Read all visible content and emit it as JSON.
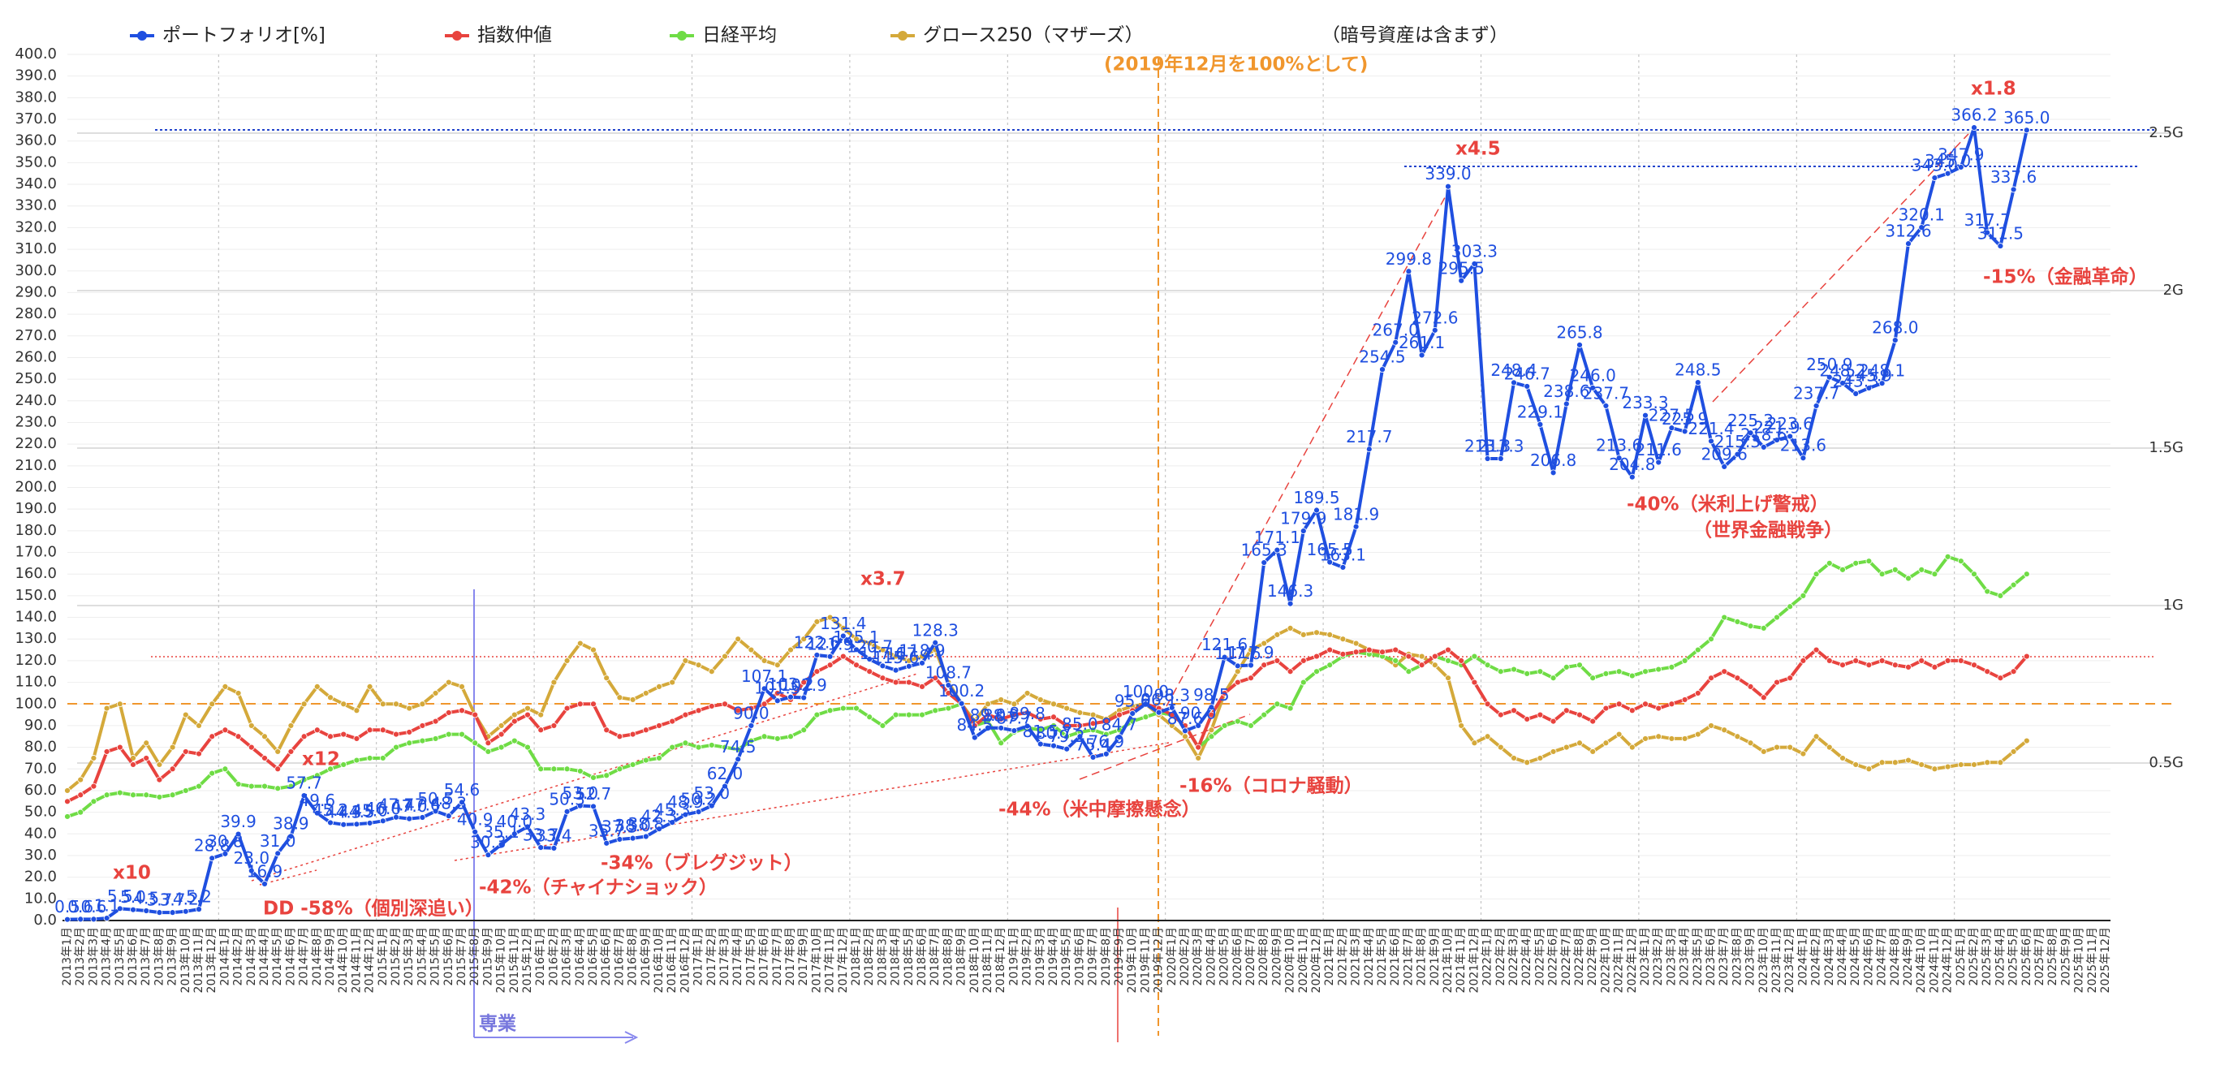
{
  "chart_data": {
    "type": "line",
    "categories": [
      "2013年1月",
      "2013年2月",
      "2013年3月",
      "2013年4月",
      "2013年5月",
      "2013年6月",
      "2013年7月",
      "2013年8月",
      "2013年9月",
      "2013年10月",
      "2013年11月",
      "2013年12月",
      "2014年1月",
      "2014年2月",
      "2014年3月",
      "2014年4月",
      "2014年5月",
      "2014年6月",
      "2014年7月",
      "2014年8月",
      "2014年9月",
      "2014年10月",
      "2014年11月",
      "2014年12月",
      "2015年1月",
      "2015年2月",
      "2015年3月",
      "2015年4月",
      "2015年5月",
      "2015年6月",
      "2015年7月",
      "2015年8月",
      "2015年9月",
      "2015年10月",
      "2015年11月",
      "2015年12月",
      "2016年1月",
      "2016年2月",
      "2016年3月",
      "2016年4月",
      "2016年5月",
      "2016年6月",
      "2016年7月",
      "2016年8月",
      "2016年9月",
      "2016年10月",
      "2016年11月",
      "2016年12月",
      "2017年1月",
      "2017年2月",
      "2017年3月",
      "2017年4月",
      "2017年5月",
      "2017年6月",
      "2017年7月",
      "2017年8月",
      "2017年9月",
      "2017年10月",
      "2017年11月",
      "2017年12月",
      "2018年1月",
      "2018年2月",
      "2018年3月",
      "2018年4月",
      "2018年5月",
      "2018年6月",
      "2018年7月",
      "2018年8月",
      "2018年9月",
      "2018年10月",
      "2018年11月",
      "2018年12月",
      "2019年1月",
      "2019年2月",
      "2019年3月",
      "2019年4月",
      "2019年5月",
      "2019年6月",
      "2019年7月",
      "2019年8月",
      "2019年9月",
      "2019年10月",
      "2019年11月",
      "2019年12月",
      "2020年1月",
      "2020年2月",
      "2020年3月",
      "2020年4月",
      "2020年5月",
      "2020年6月",
      "2020年7月",
      "2020年8月",
      "2020年9月",
      "2020年10月",
      "2020年11月",
      "2020年12月",
      "2021年1月",
      "2021年2月",
      "2021年3月",
      "2021年4月",
      "2021年5月",
      "2021年6月",
      "2021年7月",
      "2021年8月",
      "2021年9月",
      "2021年10月",
      "2021年11月",
      "2021年12月",
      "2022年1月",
      "2022年2月",
      "2022年3月",
      "2022年4月",
      "2022年5月",
      "2022年6月",
      "2022年7月",
      "2022年8月",
      "2022年9月",
      "2022年10月",
      "2022年11月",
      "2022年12月",
      "2023年1月",
      "2023年2月",
      "2023年3月",
      "2023年4月",
      "2023年5月",
      "2023年6月",
      "2023年7月",
      "2023年8月",
      "2023年9月",
      "2023年10月",
      "2023年11月",
      "2023年12月",
      "2024年1月",
      "2024年2月",
      "2024年3月",
      "2024年4月",
      "2024年5月",
      "2024年6月",
      "2024年7月",
      "2024年8月",
      "2024年9月",
      "2024年10月",
      "2024年11月",
      "2024年12月",
      "2025年1月",
      "2025年2月",
      "2025年3月",
      "2025年4月",
      "2025年5月",
      "2025年6月",
      "2025年7月",
      "2025年8月",
      "2025年9月",
      "2025年10月",
      "2025年11月",
      "2025年12月"
    ],
    "series": [
      {
        "name": "ポートフォリオ[%]",
        "color": "#1f4fe0",
        "labeled": true,
        "values": [
          0.5,
          0.6,
          0.6,
          1.1,
          5.5,
          5.0,
          4.5,
          3.7,
          3.7,
          4.2,
          5.2,
          28.8,
          30.8,
          39.9,
          23.0,
          16.9,
          31.0,
          38.9,
          57.7,
          49.6,
          45.2,
          44.3,
          44.5,
          45.0,
          46.0,
          47.7,
          47.0,
          47.6,
          50.5,
          48.3,
          54.6,
          40.9,
          30.3,
          35.1,
          40.0,
          43.3,
          33.7,
          33.4,
          50.3,
          53.0,
          52.7,
          35.7,
          37.5,
          38.0,
          38.8,
          42.3,
          45.3,
          48.9,
          50.2,
          53.0,
          62.0,
          74.5,
          90.0,
          107.1,
          101.5,
          103.2,
          102.9,
          122.6,
          121.9,
          131.4,
          125.1,
          120.7,
          117.6,
          115.6,
          117.4,
          118.9,
          128.3,
          108.7,
          100.2,
          84.5,
          89.0,
          88.9,
          87.7,
          89.8,
          81.5,
          80.7,
          79.2,
          85.0,
          75.4,
          76.9,
          84.7,
          95.6,
          100.0,
          96.1,
          98.3,
          87.6,
          90.0,
          98.5,
          121.6,
          117.6,
          117.9,
          165.3,
          171.1,
          146.3,
          179.9,
          189.5,
          165.5,
          163.1,
          181.9,
          217.7,
          254.5,
          267.0,
          299.8,
          261.1,
          272.6,
          339.0,
          295.5,
          303.3,
          213.3,
          213.3,
          248.4,
          246.7,
          229.1,
          206.8,
          238.6,
          265.8,
          246.0,
          237.7,
          213.6,
          204.8,
          233.3,
          211.6,
          227.5,
          225.9,
          248.5,
          221.4,
          209.6,
          215.3,
          225.2,
          218.6,
          221.9,
          223.6,
          213.6,
          237.7,
          250.9,
          248.2,
          243.3,
          245.9,
          248.1,
          268.0,
          312.6,
          320.1,
          343.0,
          345.0,
          347.9,
          366.2,
          317.7,
          311.5,
          337.6,
          365.0,
          null,
          null,
          null,
          null,
          null,
          null
        ],
        "value_labels": [
          "0.5",
          "0.6",
          "0.6",
          "1.1",
          "5.5",
          "5.0",
          "4.5",
          "3.7",
          "3.7",
          "4.2",
          "5.2",
          "28.8",
          "30.8",
          "39.9",
          "23.0",
          "16.9",
          "31.0",
          "38.9",
          "57.7",
          "49.6",
          "45.2",
          "44.3",
          "44.5",
          "45.0",
          "46.0",
          "47.7",
          "47.0",
          "47.6",
          "50.5",
          "48.3",
          "54.6",
          "40.9",
          "30.3",
          "35.1",
          "40.0",
          "43.3",
          "33.7",
          "33.4",
          "50.3",
          "53.0",
          "52.7",
          "35.7",
          "37.5",
          "38.0",
          "38.8",
          "42.3",
          "45.3",
          "48.9",
          "50.2",
          "53.0",
          "62.0",
          "74.5",
          "90.0",
          "107.1",
          "101.5",
          "103.2",
          "102.9",
          "122.6",
          "121.9",
          "131.4",
          "125.1",
          "120.7",
          "117.6",
          "115.6",
          "117.4",
          "118.9",
          "128.3",
          "108.7",
          "100.2",
          "84.5",
          "89.0",
          "88.9",
          "87.7",
          "89.8",
          "81.5",
          "80.7",
          "79.2",
          "85.0",
          "75.4",
          "76.9",
          "84.7",
          "95.6",
          "100.0",
          "96.1",
          "98.3",
          "87.6",
          "90.0",
          "98.5",
          "121.6",
          "117.6",
          "117.9",
          "165.3",
          "171.1",
          "146.3",
          "179.9",
          "189.5",
          "165.5",
          "163.1",
          "181.9",
          "217.7",
          "254.5",
          "267.0",
          "299.8",
          "261.1",
          "272.6",
          "339.0",
          "295.5",
          "303.3",
          "213.3",
          "213.3",
          "248.4",
          "246.7",
          "229.1",
          "206.8",
          "238.6",
          "265.8",
          "246.0",
          "237.7",
          "213.6",
          "204.8",
          "233.3",
          "211.6",
          "227.5",
          "225.9",
          "248.5",
          "221.4",
          "209.6",
          "215.3",
          "225.2",
          "218.6",
          "221.9",
          "223.6",
          "213.6",
          "237.7",
          "250.9",
          "248.2",
          "243.3",
          "245.9",
          "248.1",
          "268.0",
          "312.6",
          "320.1",
          "343.0",
          "345.0",
          "347.9",
          "366.2",
          "317.7",
          "311.5",
          "337.6",
          "365.0",
          null,
          null,
          null,
          null,
          null,
          null
        ]
      },
      {
        "name": "指数仲値",
        "color": "#e8433e",
        "values": [
          55,
          58,
          62,
          78,
          80,
          72,
          75,
          65,
          70,
          78,
          77,
          85,
          88,
          85,
          80,
          75,
          70,
          78,
          85,
          88,
          85,
          86,
          84,
          88,
          88,
          86,
          87,
          90,
          92,
          96,
          97,
          95,
          82,
          86,
          92,
          95,
          88,
          90,
          98,
          100,
          100,
          88,
          85,
          86,
          88,
          90,
          92,
          95,
          97,
          99,
          100,
          97,
          98,
          100,
          105,
          102,
          110,
          115,
          118,
          122,
          118,
          115,
          112,
          110,
          110,
          108,
          112,
          105,
          100,
          90,
          95,
          93,
          95,
          96,
          93,
          94,
          90,
          90,
          91,
          92,
          95,
          97,
          100,
          98,
          95,
          90,
          80,
          95,
          105,
          110,
          112,
          118,
          120,
          115,
          120,
          122,
          125,
          123,
          124,
          125,
          124,
          125,
          122,
          118,
          122,
          125,
          120,
          110,
          100,
          95,
          97,
          93,
          95,
          92,
          97,
          95,
          92,
          98,
          100,
          97,
          100,
          98,
          100,
          102,
          105,
          112,
          115,
          112,
          108,
          103,
          110,
          112,
          120,
          125,
          120,
          118,
          120,
          118,
          120,
          118,
          117,
          120,
          117,
          120,
          120,
          118,
          115,
          112,
          115,
          122,
          null,
          null,
          null,
          null,
          null,
          null
        ]
      },
      {
        "name": "日経平均",
        "color": "#6fdc45",
        "values": [
          48,
          50,
          55,
          58,
          59,
          58,
          58,
          57,
          58,
          60,
          62,
          68,
          70,
          63,
          62,
          62,
          61,
          62,
          65,
          67,
          70,
          72,
          74,
          75,
          75,
          80,
          82,
          83,
          84,
          86,
          86,
          82,
          78,
          80,
          83,
          80,
          70,
          70,
          70,
          69,
          66,
          67,
          70,
          72,
          74,
          75,
          80,
          82,
          80,
          81,
          80,
          79,
          83,
          85,
          84,
          85,
          88,
          95,
          97,
          98,
          98,
          94,
          90,
          95,
          95,
          95,
          97,
          98,
          100,
          90,
          92,
          82,
          87,
          89,
          88,
          90,
          85,
          87,
          88,
          86,
          88,
          92,
          94,
          96,
          95,
          90,
          80,
          85,
          90,
          92,
          90,
          95,
          100,
          98,
          110,
          115,
          118,
          122,
          124,
          123,
          122,
          120,
          115,
          118,
          122,
          120,
          118,
          122,
          118,
          115,
          116,
          114,
          115,
          112,
          117,
          118,
          112,
          114,
          115,
          113,
          115,
          116,
          117,
          120,
          125,
          130,
          140,
          138,
          136,
          135,
          140,
          145,
          150,
          160,
          165,
          162,
          165,
          166,
          160,
          162,
          158,
          162,
          160,
          168,
          166,
          160,
          152,
          150,
          155,
          160,
          null,
          null,
          null,
          null,
          null,
          null
        ]
      },
      {
        "name": "グロース250（マザーズ）",
        "color": "#d4a93a",
        "values": [
          60,
          65,
          75,
          98,
          100,
          75,
          82,
          72,
          80,
          95,
          90,
          100,
          108,
          105,
          90,
          85,
          78,
          90,
          100,
          108,
          103,
          100,
          97,
          108,
          100,
          100,
          98,
          100,
          105,
          110,
          108,
          95,
          85,
          90,
          95,
          98,
          95,
          110,
          120,
          128,
          125,
          112,
          103,
          102,
          105,
          108,
          110,
          120,
          118,
          115,
          122,
          130,
          125,
          120,
          118,
          125,
          130,
          138,
          140,
          135,
          130,
          128,
          125,
          122,
          120,
          122,
          125,
          110,
          100,
          92,
          100,
          102,
          100,
          105,
          102,
          100,
          98,
          96,
          95,
          93,
          97,
          99,
          100,
          95,
          90,
          85,
          75,
          88,
          105,
          115,
          125,
          128,
          132,
          135,
          132,
          133,
          132,
          130,
          128,
          125,
          122,
          118,
          123,
          122,
          118,
          112,
          90,
          82,
          85,
          80,
          75,
          73,
          75,
          78,
          80,
          82,
          78,
          82,
          86,
          80,
          84,
          85,
          84,
          84,
          86,
          90,
          88,
          85,
          82,
          78,
          80,
          80,
          77,
          85,
          80,
          75,
          72,
          70,
          73,
          73,
          74,
          72,
          70,
          71,
          72,
          72,
          73,
          73,
          78,
          83,
          null,
          null,
          null,
          null,
          null,
          null
        ]
      }
    ],
    "ylim": [
      0,
      400
    ],
    "yticks": [
      {
        "value": 0,
        "label": "0.0"
      },
      {
        "value": 10,
        "label": "10.0"
      },
      {
        "value": 20,
        "label": "20.0"
      },
      {
        "value": 30,
        "label": "30.0"
      },
      {
        "value": 40,
        "label": "40.0"
      },
      {
        "value": 50,
        "label": "50.0"
      },
      {
        "value": 60,
        "label": "60.0"
      },
      {
        "value": 70,
        "label": "70.0"
      },
      {
        "value": 80,
        "label": "80.0"
      },
      {
        "value": 90,
        "label": "90.0"
      },
      {
        "value": 100,
        "label": "100.0"
      },
      {
        "value": 110,
        "label": "110.0"
      },
      {
        "value": 120,
        "label": "120.0"
      },
      {
        "value": 130,
        "label": "130.0"
      },
      {
        "value": 140,
        "label": "140.0"
      },
      {
        "value": 150,
        "label": "150.0"
      },
      {
        "value": 160,
        "label": "160.0"
      },
      {
        "value": 170,
        "label": "170.0"
      },
      {
        "value": 180,
        "label": "180.0"
      },
      {
        "value": 190,
        "label": "190.0"
      },
      {
        "value": 200,
        "label": "200.0"
      },
      {
        "value": 210,
        "label": "210.0"
      },
      {
        "value": 220,
        "label": "220.0"
      },
      {
        "value": 230,
        "label": "230.0"
      },
      {
        "value": 240,
        "label": "240.0"
      },
      {
        "value": 250,
        "label": "250.0"
      },
      {
        "value": 260,
        "label": "260.0"
      },
      {
        "value": 270,
        "label": "270.0"
      },
      {
        "value": 280,
        "label": "280.0"
      },
      {
        "value": 290,
        "label": "290.0"
      },
      {
        "value": 300,
        "label": "300.0"
      },
      {
        "value": 310,
        "label": "310.0"
      },
      {
        "value": 320,
        "label": "320.0"
      },
      {
        "value": 330,
        "label": "330.0"
      },
      {
        "value": 340,
        "label": "340.0"
      },
      {
        "value": 350,
        "label": "350.0"
      },
      {
        "value": 360,
        "label": "360.0"
      },
      {
        "value": 370,
        "label": "370.0"
      },
      {
        "value": 380,
        "label": "380.0"
      },
      {
        "value": 390,
        "label": "390.0"
      },
      {
        "value": 400,
        "label": "400.0"
      }
    ],
    "y2lim": [
      0,
      2.75
    ],
    "y2ticks": [
      {
        "value": 0.5,
        "label": "0.5G"
      },
      {
        "value": 1,
        "label": "1G"
      },
      {
        "value": 1.5,
        "label": "1.5G"
      },
      {
        "value": 2,
        "label": "2G"
      },
      {
        "value": 2.5,
        "label": "2.5G"
      }
    ],
    "grid": true,
    "annotations": [
      {
        "text": "（暗号資産は含まず）",
        "color": "#222222"
      },
      {
        "text": "(2019年12月を100%として)",
        "color": "#f0962d"
      },
      {
        "text": "x10",
        "color": "#e8433e"
      },
      {
        "text": "DD -58%（個別深追い）",
        "color": "#e8433e"
      },
      {
        "text": "x12",
        "color": "#e8433e"
      },
      {
        "text": "-42%（チャイナショック）",
        "color": "#e8433e"
      },
      {
        "text": "-34%（ブレグジット）",
        "color": "#e8433e"
      },
      {
        "text": "x3.7",
        "color": "#e8433e"
      },
      {
        "text": "-44%（米中摩擦懸念）",
        "color": "#e8433e"
      },
      {
        "text": "-16%（コロナ騒動）",
        "color": "#e8433e"
      },
      {
        "text": "x4.5",
        "color": "#e8433e"
      },
      {
        "text": "-40%（米利上げ警戒）",
        "color": "#e8433e"
      },
      {
        "text": "（世界金融戦争）",
        "color": "#e8433e"
      },
      {
        "text": "x1.8",
        "color": "#e8433e"
      },
      {
        "text": "-15%（金融革命）",
        "color": "#e8433e"
      },
      {
        "text": "専業",
        "color": "#7777dd"
      }
    ]
  }
}
